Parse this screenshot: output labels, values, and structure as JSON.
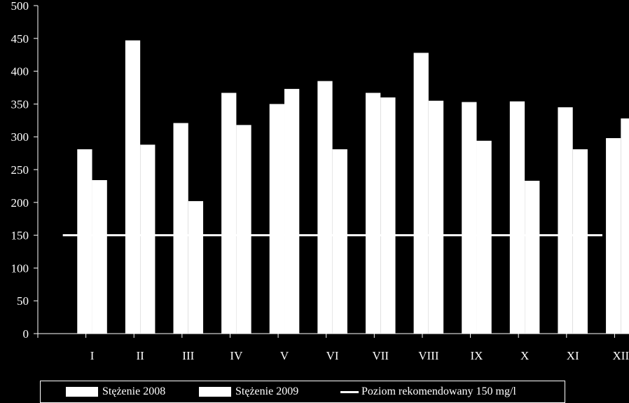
{
  "chart_data": {
    "type": "bar",
    "categories": [
      "I",
      "II",
      "III",
      "IV",
      "V",
      "VI",
      "VII",
      "VIII",
      "IX",
      "X",
      "XI",
      "XII"
    ],
    "series": [
      {
        "name": "Stężenie 2008",
        "values": [
          281,
          447,
          321,
          367,
          350,
          385,
          367,
          428,
          353,
          354,
          345,
          298
        ]
      },
      {
        "name": "Stężenie 2009",
        "values": [
          234,
          288,
          202,
          318,
          373,
          281,
          360,
          355,
          294,
          233,
          281,
          328
        ]
      }
    ],
    "reference_line": {
      "name": "Poziom rekomendowany 150 mg/l",
      "value": 150
    },
    "ylim": [
      0,
      500
    ],
    "yticks": [
      0,
      50,
      100,
      150,
      200,
      250,
      300,
      350,
      400,
      450,
      500
    ],
    "title": "",
    "xlabel": "",
    "ylabel": "",
    "legend_position": "bottom",
    "grid": false,
    "colors": {
      "background": "#000000",
      "bars": "#ffffff",
      "line": "#ffffff",
      "axis": "#ffffff"
    }
  }
}
